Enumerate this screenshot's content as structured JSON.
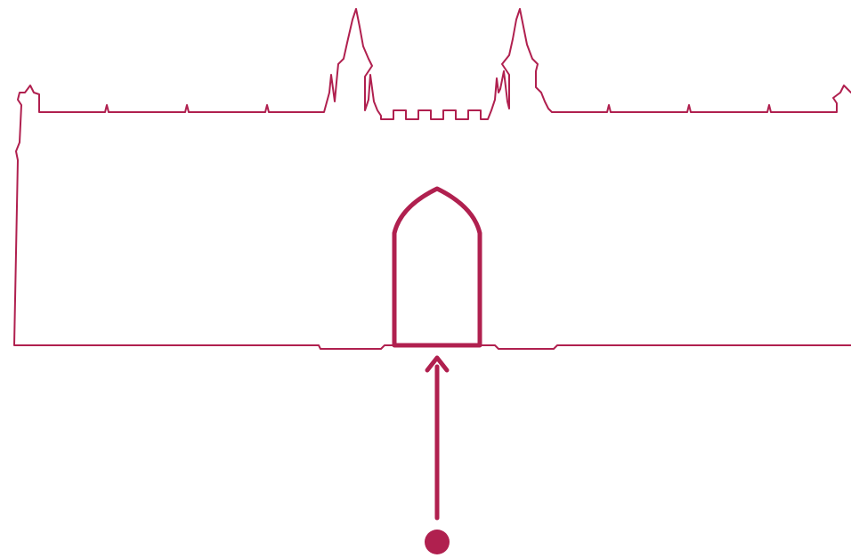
{
  "diagram": {
    "subject": "building-facade-entrance-indicator",
    "colors": {
      "stroke": "#B0204F",
      "background": "#FFFFFF"
    },
    "elements": {
      "facade": "facade-outline",
      "entrance": "arched-doorway",
      "pointer": "up-arrow",
      "marker": "location-dot"
    }
  }
}
